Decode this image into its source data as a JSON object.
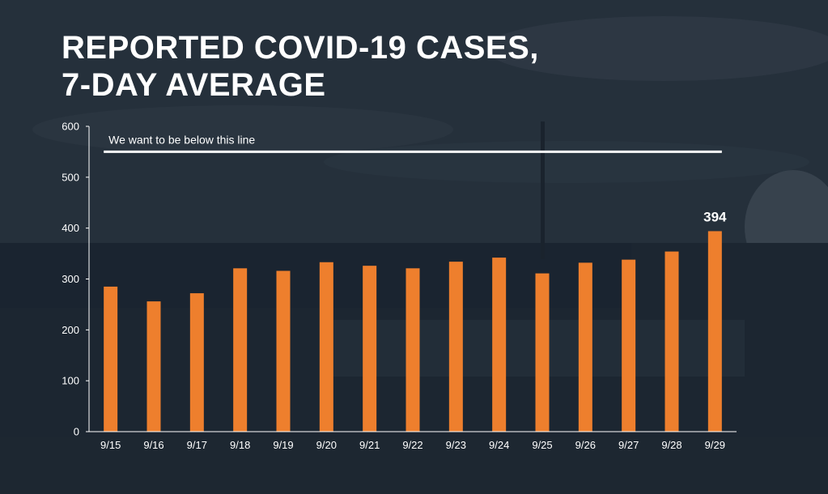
{
  "title": {
    "line1": "REPORTED COVID-19 CASES,",
    "line2": "7-DAY AVERAGE"
  },
  "colors": {
    "bar": "#ee7f2d",
    "text": "#ffffff",
    "axis": "#ffffff"
  },
  "chart_data": {
    "type": "bar",
    "title": "REPORTED COVID-19 CASES, 7-DAY AVERAGE",
    "xlabel": "",
    "ylabel": "",
    "categories": [
      "9/15",
      "9/16",
      "9/17",
      "9/18",
      "9/19",
      "9/20",
      "9/21",
      "9/22",
      "9/23",
      "9/24",
      "9/25",
      "9/26",
      "9/27",
      "9/28",
      "9/29"
    ],
    "values": [
      285,
      256,
      272,
      321,
      316,
      333,
      326,
      321,
      334,
      342,
      311,
      332,
      338,
      354,
      394
    ],
    "ylim": [
      0,
      600
    ],
    "yticks": [
      "0",
      "100",
      "200",
      "300",
      "400",
      "500",
      "600"
    ],
    "grid": false,
    "data_labels": [
      {
        "category": "9/29",
        "text": "394"
      }
    ],
    "reference_line": {
      "y": 550,
      "x_start": "9/15",
      "x_end": "9/29",
      "label": "We want to be below this line"
    }
  }
}
